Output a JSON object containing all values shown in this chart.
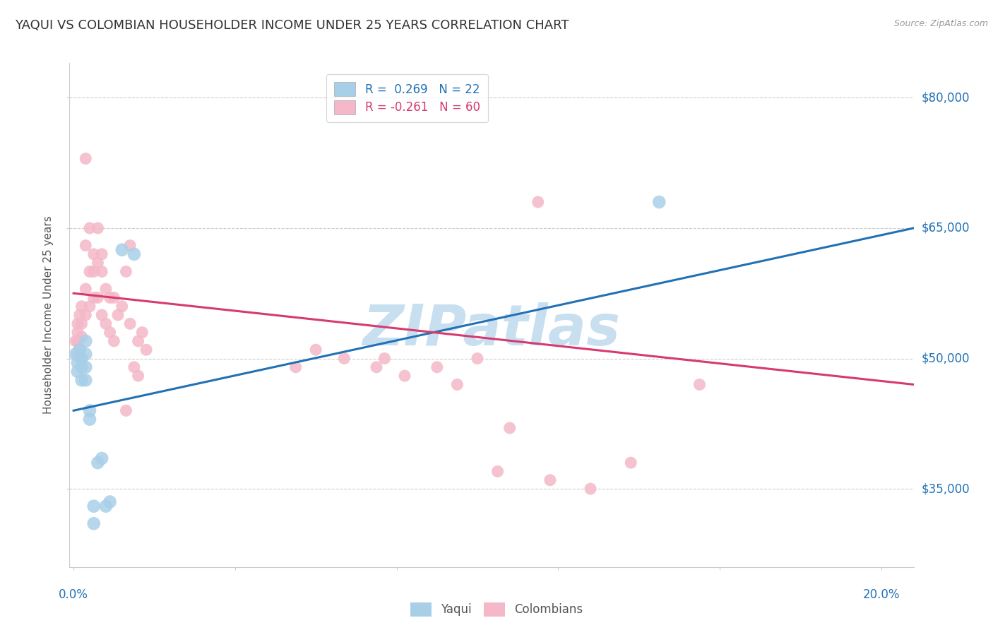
{
  "title": "YAQUI VS COLOMBIAN HOUSEHOLDER INCOME UNDER 25 YEARS CORRELATION CHART",
  "source": "Source: ZipAtlas.com",
  "ylabel": "Householder Income Under 25 years",
  "ytick_labels": [
    "$35,000",
    "$50,000",
    "$65,000",
    "$80,000"
  ],
  "ytick_values": [
    35000,
    50000,
    65000,
    80000
  ],
  "ymin": 26000,
  "ymax": 84000,
  "xmin": -0.001,
  "xmax": 0.208,
  "legend_blue_r": "0.269",
  "legend_blue_n": "22",
  "legend_pink_r": "-0.261",
  "legend_pink_n": "60",
  "blue_color": "#a8cfe8",
  "pink_color": "#f4b8c8",
  "blue_line_color": "#2171b5",
  "pink_line_color": "#d63a6e",
  "watermark": "ZIPatlas",
  "watermark_color": "#c8dff0",
  "blue_scatter_x": [
    0.0005,
    0.001,
    0.001,
    0.0015,
    0.002,
    0.002,
    0.002,
    0.003,
    0.003,
    0.003,
    0.003,
    0.004,
    0.004,
    0.005,
    0.005,
    0.006,
    0.007,
    0.008,
    0.009,
    0.012,
    0.015,
    0.145
  ],
  "blue_scatter_y": [
    50500,
    49500,
    48500,
    51000,
    50000,
    49000,
    47500,
    52000,
    50500,
    49000,
    47500,
    44000,
    43000,
    33000,
    31000,
    38000,
    38500,
    33000,
    33500,
    62500,
    62000,
    68000
  ],
  "pink_scatter_x": [
    0.0005,
    0.001,
    0.001,
    0.001,
    0.001,
    0.0015,
    0.0015,
    0.002,
    0.002,
    0.002,
    0.002,
    0.003,
    0.003,
    0.003,
    0.003,
    0.004,
    0.004,
    0.004,
    0.005,
    0.005,
    0.005,
    0.006,
    0.006,
    0.006,
    0.007,
    0.007,
    0.007,
    0.008,
    0.008,
    0.009,
    0.009,
    0.01,
    0.01,
    0.011,
    0.012,
    0.013,
    0.013,
    0.014,
    0.014,
    0.015,
    0.016,
    0.016,
    0.017,
    0.018,
    0.055,
    0.06,
    0.067,
    0.075,
    0.077,
    0.082,
    0.09,
    0.095,
    0.1,
    0.105,
    0.108,
    0.115,
    0.118,
    0.128,
    0.138,
    0.155
  ],
  "pink_scatter_y": [
    52000,
    54000,
    53000,
    52000,
    50500,
    55000,
    51000,
    56000,
    54000,
    52500,
    50000,
    73000,
    63000,
    58000,
    55000,
    65000,
    60000,
    56000,
    62000,
    60000,
    57000,
    65000,
    61000,
    57000,
    62000,
    60000,
    55000,
    58000,
    54000,
    57000,
    53000,
    57000,
    52000,
    55000,
    56000,
    60000,
    44000,
    63000,
    54000,
    49000,
    52000,
    48000,
    53000,
    51000,
    49000,
    51000,
    50000,
    49000,
    50000,
    48000,
    49000,
    47000,
    50000,
    37000,
    42000,
    68000,
    36000,
    35000,
    38000,
    47000
  ],
  "blue_line_x": [
    0.0,
    0.208
  ],
  "blue_line_y": [
    44000,
    65000
  ],
  "pink_line_x": [
    0.0,
    0.208
  ],
  "pink_line_y": [
    57500,
    47000
  ],
  "grid_color": "#cccccc",
  "bg_color": "#ffffff",
  "title_color": "#333333",
  "axis_label_color": "#555555",
  "right_tick_color": "#2171b5",
  "scatter_size_blue": 180,
  "scatter_size_pink": 150
}
